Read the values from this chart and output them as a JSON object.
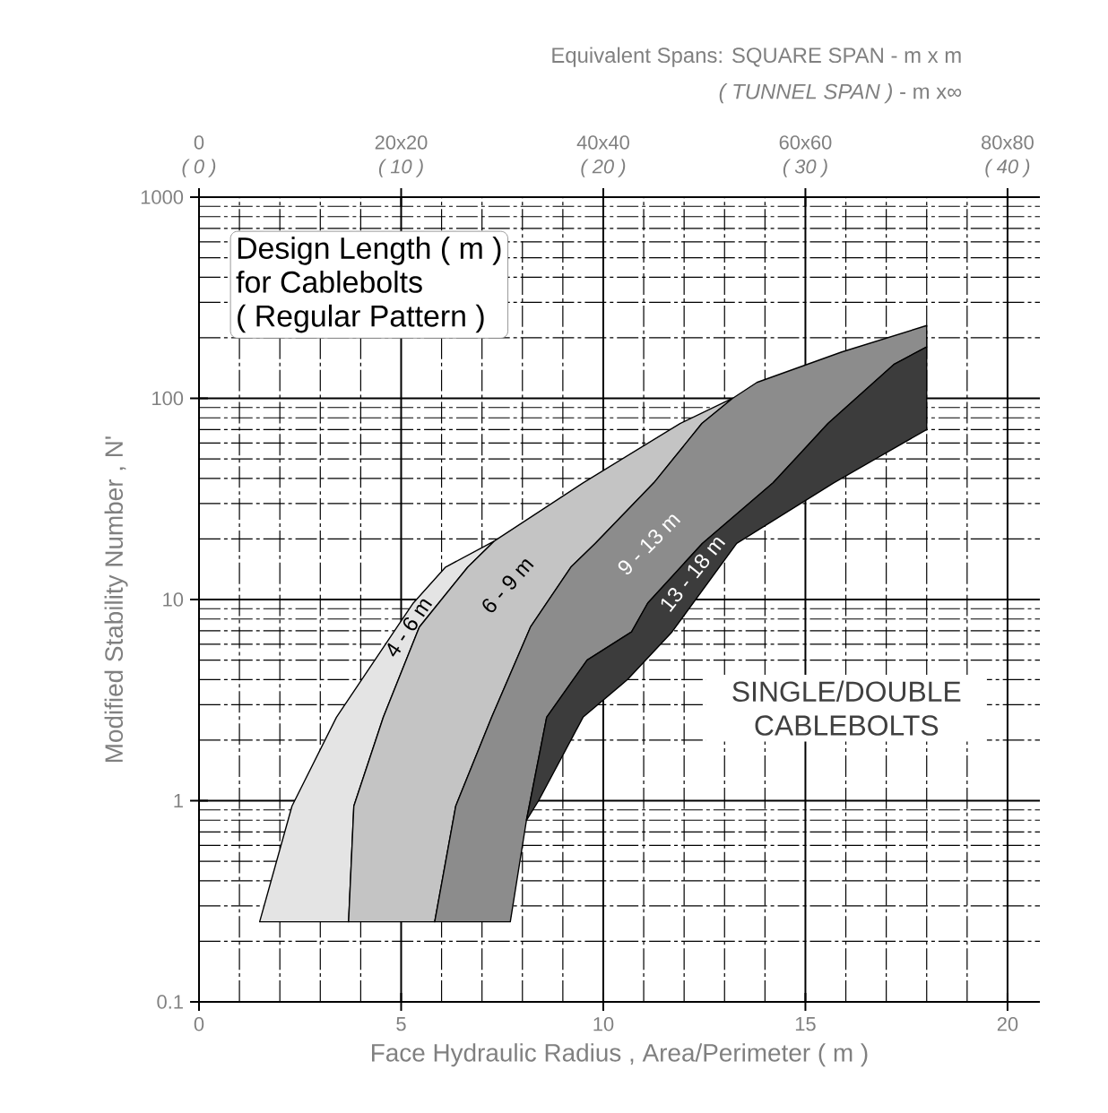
{
  "chart_data": {
    "type": "area",
    "x2label": "Equivalent Spans:  SQUARE SPAN  -  m x m",
    "xlabel": "Face Hydraulic Radius , Area/Perimeter  ( m )",
    "ylabel": "Modified Stability Number , N'",
    "annotations": [
      "*( TUNNEL  SPAN )* -  m x∞",
      "Design Length ( m )",
      "for Cablebolts",
      "( Regular Pattern )",
      "SINGLE/DOUBLE CABLEBOLTS",
      "0",
      "20x20",
      "40x40",
      "60x60",
      "80x80",
      "( 0 )",
      "( 10 )",
      "( 20 )",
      "( 30 )",
      "( 40 )"
    ],
    "log": "y",
    "grid": true,
    "xlim": [
      0,
      20.8
    ],
    "ylim": [
      0.1,
      1000
    ],
    "xticks": [
      0,
      5,
      10,
      15,
      20
    ],
    "yticks": [
      0.1,
      1,
      10,
      100,
      1000
    ],
    "series": [
      {
        "name": "4 - 6 m",
        "color": "#e4e4e4",
        "x": [
          1.5,
          2.3,
          3.4,
          4.9,
          5.3,
          6.1,
          7.3,
          6.65,
          5.45,
          4.56,
          3.83,
          3.7
        ],
        "values": [
          0.25,
          0.94,
          2.6,
          7.3,
          9.6,
          14.5,
          19.5,
          14.5,
          7.3,
          2.6,
          0.94,
          0.25
        ]
      },
      {
        "name": "6 - 9 m",
        "color": "#c4c4c4",
        "x": [
          3.7,
          3.83,
          4.56,
          5.45,
          6.65,
          7.3,
          9.5,
          11.9,
          13.2,
          12.44,
          11.25,
          9.8,
          9.2,
          8.6,
          8.2,
          7.24,
          6.35,
          5.83
        ],
        "values": [
          0.25,
          0.94,
          2.6,
          7.3,
          14.5,
          19.5,
          38,
          75,
          100,
          75,
          38,
          19,
          14.5,
          9.6,
          7.3,
          2.6,
          0.94,
          0.25
        ]
      },
      {
        "name": "9 - 13 m",
        "color": "#8c8c8c",
        "x": [
          5.83,
          6.35,
          7.24,
          8.2,
          8.6,
          9.2,
          9.8,
          11.25,
          12.44,
          13.2,
          13.8,
          15.9,
          18,
          18,
          17.2,
          15.56,
          14.2,
          12.45,
          11.1,
          10.7,
          9.6,
          8.6,
          8.1,
          7.7
        ],
        "values": [
          0.25,
          0.94,
          2.6,
          7.3,
          9.6,
          14.5,
          19,
          38,
          75,
          100,
          120,
          170,
          230,
          180,
          148,
          75,
          38,
          19,
          9.6,
          6.9,
          5,
          2.6,
          0.8,
          0.25
        ]
      },
      {
        "name": "13 - 18 m",
        "color": "#3c3c3c",
        "x": [
          8.1,
          8.6,
          9.6,
          10.7,
          11.1,
          12.45,
          14.2,
          15.56,
          17.2,
          18,
          18,
          15.7,
          13.3,
          11.7,
          10.6,
          9.5,
          8.4
        ],
        "values": [
          0.8,
          2.6,
          5,
          6.9,
          9.6,
          19,
          38,
          75,
          148,
          180,
          70,
          38,
          19,
          6.9,
          4,
          2.6,
          1
        ]
      }
    ]
  }
}
